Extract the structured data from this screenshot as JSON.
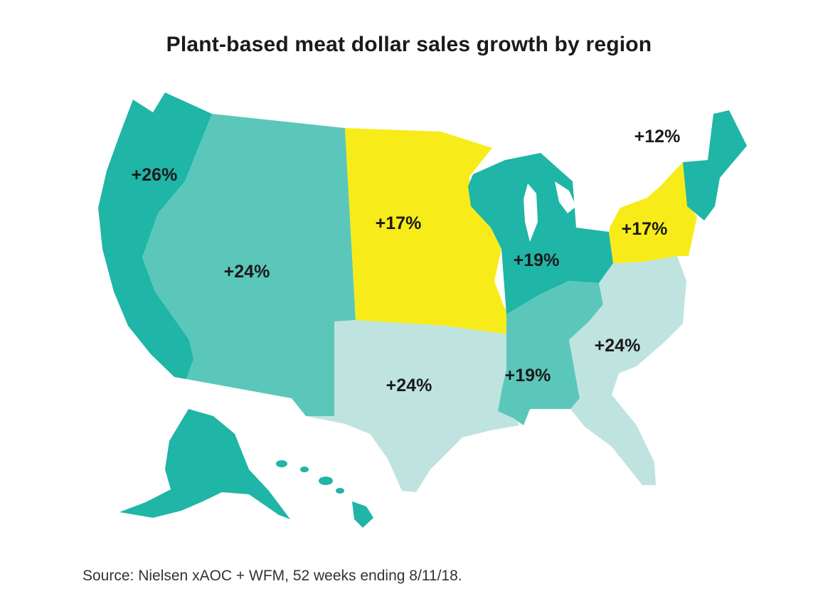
{
  "title": "Plant-based meat dollar sales growth by region",
  "source": "Source: Nielsen xAOC + WFM, 52 weeks ending 8/11/18.",
  "colors": {
    "dark_teal": "#1fb5a7",
    "medium_teal": "#5bc7bb",
    "light_teal": "#bfe4e0",
    "yellow": "#f7ec1a"
  },
  "regions": [
    {
      "name": "Pacific",
      "label": "+26%",
      "value": 26,
      "color": "dark_teal"
    },
    {
      "name": "Mountain",
      "label": "+24%",
      "value": 24,
      "color": "medium_teal"
    },
    {
      "name": "West North Central",
      "label": "+17%",
      "value": 17,
      "color": "yellow"
    },
    {
      "name": "East North Central",
      "label": "+19%",
      "value": 19,
      "color": "dark_teal"
    },
    {
      "name": "Middle Atlantic",
      "label": "+17%",
      "value": 17,
      "color": "yellow"
    },
    {
      "name": "New England",
      "label": "+12%",
      "value": 12,
      "color": "dark_teal"
    },
    {
      "name": "West South Central",
      "label": "+24%",
      "value": 24,
      "color": "light_teal"
    },
    {
      "name": "East South Central",
      "label": "+19%",
      "value": 19,
      "color": "medium_teal"
    },
    {
      "name": "South Atlantic",
      "label": "+24%",
      "value": 24,
      "color": "light_teal"
    }
  ]
}
